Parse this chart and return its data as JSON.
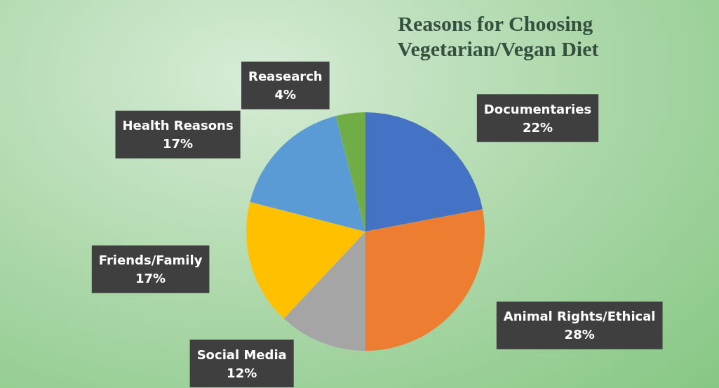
{
  "chart_data": {
    "type": "pie",
    "title": "Reasons for Choosing Vegetarian/Vegan Diet",
    "categories": [
      "Documentaries",
      "Animal Rights/Ethical",
      "Social Media",
      "Friends/Family",
      "Health Reasons",
      "Reasearch"
    ],
    "values": [
      22,
      28,
      12,
      17,
      17,
      4
    ],
    "colors": [
      "#4472c4",
      "#ed7d31",
      "#a5a5a5",
      "#ffc000",
      "#5b9bd5",
      "#70ad47"
    ],
    "value_labels": [
      "22%",
      "28%",
      "12%",
      "17%",
      "17%",
      "4%"
    ],
    "legend": false
  }
}
